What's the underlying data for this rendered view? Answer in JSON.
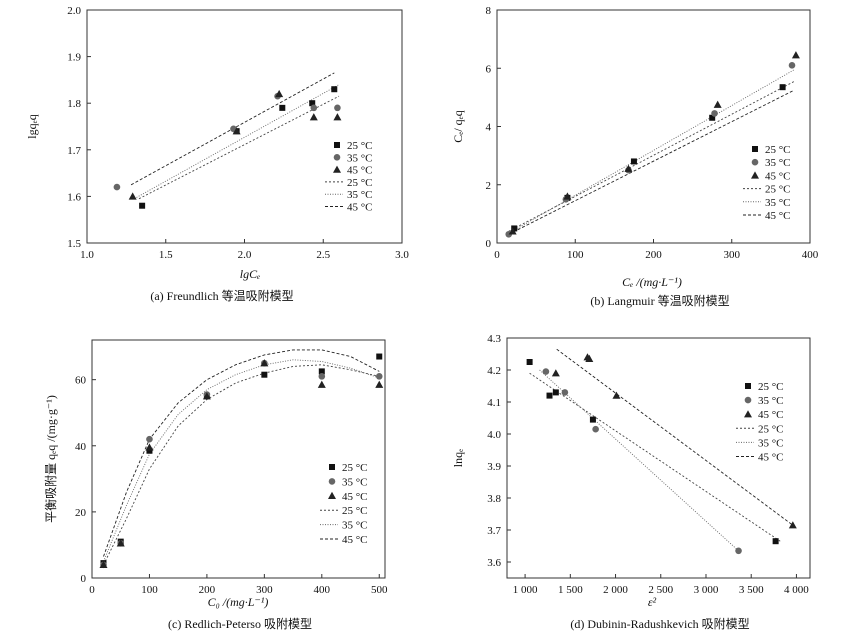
{
  "chart_data": [
    {
      "type": "scatter",
      "caption": "(a) Freundlich 等温吸附模型",
      "xlabel": "lgCₑ",
      "ylabel": "lgqₑq",
      "xlim": [
        1.0,
        3.0
      ],
      "ylim": [
        1.5,
        2.0
      ],
      "xticks": [
        "1.0",
        "1.5",
        "2.0",
        "2.5",
        "3.0"
      ],
      "yticks": [
        "1.5",
        "1.6",
        "1.7",
        "1.8",
        "1.9",
        "2.0"
      ],
      "legend_position": "bottom-right",
      "series": [
        {
          "name": "25 °C",
          "marker": "square",
          "x": [
            1.35,
            1.95,
            2.24,
            2.43,
            2.57
          ],
          "y": [
            1.58,
            1.74,
            1.79,
            1.8,
            1.83
          ]
        },
        {
          "name": "35 °C",
          "marker": "circle",
          "x": [
            1.19,
            1.93,
            2.21,
            2.44,
            2.59
          ],
          "y": [
            1.62,
            1.745,
            1.815,
            1.79,
            1.79
          ]
        },
        {
          "name": "45 °C",
          "marker": "triangle",
          "x": [
            1.29,
            1.95,
            2.22,
            2.44,
            2.59
          ],
          "y": [
            1.6,
            1.74,
            1.82,
            1.77,
            1.77
          ]
        }
      ],
      "fits": [
        {
          "name": "25 °C",
          "dash": "2,2",
          "x": [
            1.33,
            2.6
          ],
          "y": [
            1.595,
            1.815
          ]
        },
        {
          "name": "35 °C",
          "dash": "1,1.5",
          "x": [
            1.3,
            2.6
          ],
          "y": [
            1.595,
            1.84
          ]
        },
        {
          "name": "45 °C",
          "dash": "3,2",
          "x": [
            1.28,
            2.57
          ],
          "y": [
            1.625,
            1.865
          ]
        }
      ]
    },
    {
      "type": "scatter",
      "caption": "(b) Langmuir 等温吸附模型",
      "xlabel": "Cₑ /(mg·L⁻¹)",
      "ylabel": "Cₑ/ qₑq",
      "xlim": [
        0,
        400
      ],
      "ylim": [
        0,
        8
      ],
      "xticks": [
        "0",
        "100",
        "200",
        "300",
        "400"
      ],
      "yticks": [
        "0",
        "2",
        "4",
        "6",
        "8"
      ],
      "legend_position": "bottom-right",
      "series": [
        {
          "name": "25 °C",
          "marker": "square",
          "x": [
            22,
            90,
            175,
            275,
            365
          ],
          "y": [
            0.5,
            1.55,
            2.8,
            4.3,
            5.35
          ]
        },
        {
          "name": "35 °C",
          "marker": "circle",
          "x": [
            15,
            88,
            168,
            278,
            377
          ],
          "y": [
            0.3,
            1.5,
            2.5,
            4.45,
            6.1
          ]
        },
        {
          "name": "45 °C",
          "marker": "triangle",
          "x": [
            20,
            90,
            168,
            282,
            382
          ],
          "y": [
            0.4,
            1.6,
            2.55,
            4.75,
            6.45
          ]
        }
      ],
      "fits": [
        {
          "name": "25 °C",
          "dash": "2,2",
          "x": [
            15,
            380
          ],
          "y": [
            0.4,
            5.55
          ]
        },
        {
          "name": "35 °C",
          "dash": "1,1.5",
          "x": [
            15,
            380
          ],
          "y": [
            0.33,
            5.95
          ]
        },
        {
          "name": "45 °C",
          "dash": "3,2",
          "x": [
            15,
            380
          ],
          "y": [
            0.3,
            5.25
          ]
        }
      ]
    },
    {
      "type": "scatter",
      "caption": "(c) Redlich-Peterso 吸附模型",
      "xlabel": "C₀ /(mg·L⁻¹)",
      "ylabel": "平衡吸附量 qₑq /(mg·g⁻¹)",
      "xlim": [
        0,
        510
      ],
      "ylim": [
        0,
        72
      ],
      "xticks": [
        "0",
        "100",
        "200",
        "300",
        "400",
        "500"
      ],
      "yticks": [
        "0",
        "20",
        "40",
        "60"
      ],
      "legend_position": "bottom-right",
      "series": [
        {
          "name": "25 °C",
          "marker": "square",
          "x": [
            20,
            50,
            100,
            200,
            300,
            400,
            500
          ],
          "y": [
            4.5,
            11,
            38.5,
            55,
            61.5,
            62.5,
            67
          ]
        },
        {
          "name": "35 °C",
          "marker": "circle",
          "x": [
            20,
            50,
            100,
            200,
            300,
            400,
            500
          ],
          "y": [
            4,
            10.5,
            42,
            55.5,
            65,
            61,
            61
          ]
        },
        {
          "name": "45 °C",
          "marker": "triangle",
          "x": [
            20,
            50,
            100,
            200,
            300,
            400,
            500
          ],
          "y": [
            4,
            10.5,
            39.5,
            55,
            65,
            58.5,
            58.5
          ]
        }
      ],
      "fits": [
        {
          "name": "25 °C",
          "dash": "2,2",
          "x": [
            20,
            60,
            100,
            150,
            200,
            250,
            300,
            350,
            400,
            450,
            500
          ],
          "y": [
            4,
            18,
            33,
            46,
            54,
            59,
            62,
            64,
            64.5,
            63,
            61
          ]
        },
        {
          "name": "35 °C",
          "dash": "1,1.5",
          "x": [
            20,
            60,
            100,
            150,
            200,
            250,
            300,
            350,
            400,
            450,
            500
          ],
          "y": [
            5,
            22,
            37.5,
            49.5,
            57,
            61.5,
            64.5,
            66,
            65.5,
            63.5,
            60.5
          ]
        },
        {
          "name": "45 °C",
          "dash": "3,2",
          "x": [
            20,
            60,
            100,
            150,
            200,
            250,
            300,
            350,
            400,
            450,
            500
          ],
          "y": [
            6.5,
            26,
            42,
            53,
            60,
            64.5,
            67.5,
            69,
            69,
            67,
            62.5
          ]
        }
      ]
    },
    {
      "type": "scatter",
      "caption": "(d) Dubinin-Radushkevich 吸附模型",
      "xlabel": "ε²",
      "ylabel": "lnqₑ",
      "xlim": [
        800,
        4150
      ],
      "ylim": [
        3.55,
        4.3
      ],
      "xticks": [
        "1 000",
        "1 500",
        "2 000",
        "2 500",
        "3 000",
        "3 500",
        "4 000"
      ],
      "xtick_values": [
        1000,
        1500,
        2000,
        2500,
        3000,
        3500,
        4000
      ],
      "yticks": [
        "3.6",
        "3.7",
        "3.8",
        "3.9",
        "4.0",
        "4.1",
        "4.2",
        "4.3"
      ],
      "legend_position": "right",
      "series": [
        {
          "name": "25 °C",
          "marker": "square",
          "x": [
            1050,
            1270,
            1340,
            1750,
            3770
          ],
          "y": [
            4.225,
            4.12,
            4.13,
            4.045,
            3.665
          ]
        },
        {
          "name": "35 °C",
          "marker": "circle",
          "x": [
            1230,
            1440,
            1780,
            3360
          ],
          "y": [
            4.195,
            4.13,
            4.015,
            3.635
          ]
        },
        {
          "name": "45 °C",
          "marker": "triangle",
          "x": [
            1340,
            1690,
            1710,
            2010,
            3960
          ],
          "y": [
            4.19,
            4.24,
            4.235,
            4.12,
            3.715
          ]
        }
      ],
      "fits": [
        {
          "name": "25 °C",
          "dash": "2,2",
          "x": [
            1050,
            3820
          ],
          "y": [
            4.19,
            3.665
          ]
        },
        {
          "name": "35 °C",
          "dash": "1,1.5",
          "x": [
            1160,
            3360
          ],
          "y": [
            4.2,
            3.635
          ]
        },
        {
          "name": "45 °C",
          "dash": "3,2",
          "x": [
            1350,
            3960
          ],
          "y": [
            4.265,
            3.715
          ]
        }
      ]
    }
  ]
}
